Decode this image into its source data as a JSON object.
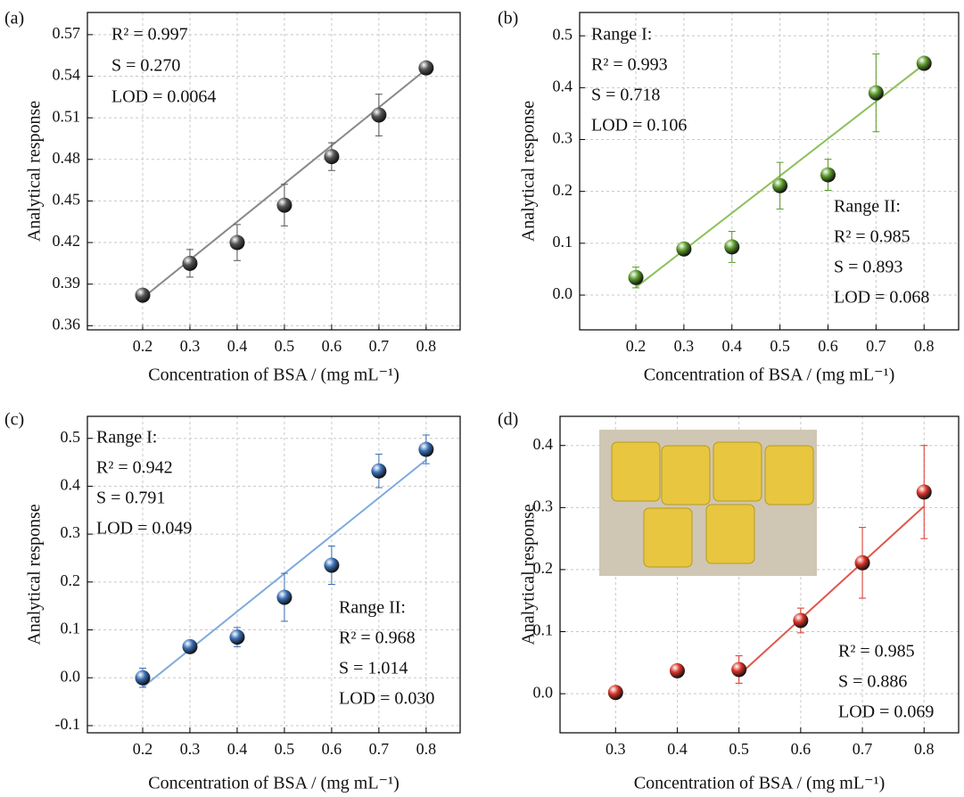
{
  "chart_data": [
    {
      "type": "scatter",
      "panel_label": "(a)",
      "xlabel": "Concentration of BSA / (mg mL⁻¹)",
      "ylabel": "Analytical response",
      "x": [
        0.2,
        0.3,
        0.4,
        0.5,
        0.6,
        0.7,
        0.8
      ],
      "values": [
        0.382,
        0.405,
        0.42,
        0.447,
        0.482,
        0.512,
        0.546
      ],
      "errors": [
        0.003,
        0.01,
        0.013,
        0.015,
        0.01,
        0.015,
        0.004
      ],
      "color": "#555555",
      "fit": {
        "x": [
          0.2,
          0.8
        ],
        "y": [
          0.38,
          0.545
        ],
        "color": "#888888"
      },
      "xlim": [
        0.083,
        0.872
      ],
      "ylim": [
        0.357,
        0.586
      ],
      "xticks": [
        0.2,
        0.3,
        0.4,
        0.5,
        0.6,
        0.7,
        0.8
      ],
      "yticks": [
        0.36,
        0.39,
        0.42,
        0.45,
        0.48,
        0.51,
        0.54,
        0.57
      ],
      "grid": true,
      "annotations": [
        [
          "R² = 0.997",
          "S = 0.270",
          "LOD = 0.0064"
        ]
      ]
    },
    {
      "type": "scatter",
      "panel_label": "(b)",
      "xlabel": "Concentration of BSA / (mg mL⁻¹)",
      "ylabel": "Analytical response",
      "x": [
        0.2,
        0.3,
        0.4,
        0.5,
        0.6,
        0.7,
        0.8
      ],
      "values": [
        0.034,
        0.089,
        0.093,
        0.211,
        0.232,
        0.39,
        0.447
      ],
      "errors": [
        0.02,
        0.01,
        0.03,
        0.045,
        0.03,
        0.075,
        0.005
      ],
      "color": "#5a9a2a",
      "fit": {
        "x": [
          0.2,
          0.8
        ],
        "y": [
          0.015,
          0.445
        ],
        "color": "#8cc05a"
      },
      "xlim": [
        0.083,
        0.872
      ],
      "ylim": [
        -0.067,
        0.545
      ],
      "xticks": [
        0.2,
        0.3,
        0.4,
        0.5,
        0.6,
        0.7,
        0.8
      ],
      "yticks": [
        {
          "value": 0,
          "label": "0.0"
        },
        0.1,
        0.2,
        0.3,
        0.4,
        0.5
      ],
      "grid": true,
      "annotations": [
        [
          "Range I:",
          "R² = 0.993",
          "S = 0.718",
          "LOD = 0.106"
        ],
        [
          "Range II:",
          "R² = 0.985",
          "S = 0.893",
          "LOD = 0.068"
        ]
      ]
    },
    {
      "type": "scatter",
      "panel_label": "(c)",
      "xlabel": "Concentration of BSA / (mg mL⁻¹)",
      "ylabel": "Analytical response",
      "x": [
        0.2,
        0.3,
        0.4,
        0.5,
        0.6,
        0.7,
        0.8
      ],
      "values": [
        0.0,
        0.065,
        0.085,
        0.168,
        0.235,
        0.432,
        0.477
      ],
      "errors": [
        0.02,
        0.01,
        0.02,
        0.05,
        0.04,
        0.035,
        0.03
      ],
      "color": "#3b6fb6",
      "fit": {
        "x": [
          0.2,
          0.8
        ],
        "y": [
          -0.02,
          0.455
        ],
        "color": "#7fa9dc"
      },
      "xlim": [
        0.083,
        0.872
      ],
      "ylim": [
        -0.115,
        0.546
      ],
      "xticks": [
        0.2,
        0.3,
        0.4,
        0.5,
        0.6,
        0.7,
        0.8
      ],
      "yticks": [
        -0.1,
        {
          "value": 0,
          "label": "0.0"
        },
        0.1,
        0.2,
        0.3,
        0.4,
        0.5
      ],
      "grid": true,
      "annotations": [
        [
          "Range I:",
          "R² = 0.942",
          "S = 0.791",
          "LOD = 0.049"
        ],
        [
          "Range II:",
          "R² = 0.968",
          "S = 1.014",
          "LOD = 0.030"
        ]
      ]
    },
    {
      "type": "scatter",
      "panel_label": "(d)",
      "xlabel": "Concentration of BSA / (mg mL⁻¹)",
      "ylabel": "Analytical response",
      "x": [
        0.3,
        0.4,
        0.5,
        0.6,
        0.7,
        0.8
      ],
      "values": [
        0.002,
        0.037,
        0.039,
        0.118,
        0.211,
        0.325
      ],
      "errors": [
        0.005,
        0.005,
        0.022,
        0.02,
        0.057,
        0.075
      ],
      "color": "#d8342a",
      "fit": {
        "x": [
          0.5,
          0.8
        ],
        "y": [
          0.03,
          0.302
        ],
        "color": "#e0574c"
      },
      "xlim": [
        0.21,
        0.856
      ],
      "ylim": [
        -0.063,
        0.447
      ],
      "xticks": [
        0.3,
        0.4,
        0.5,
        0.6,
        0.7,
        0.8
      ],
      "yticks": [
        {
          "value": 0,
          "label": "0.0"
        },
        0.1,
        0.2,
        0.3,
        0.4
      ],
      "grid": true,
      "annotations": [
        [
          "R² = 0.985",
          "S = 0.886",
          "LOD = 0.069"
        ]
      ]
    }
  ]
}
